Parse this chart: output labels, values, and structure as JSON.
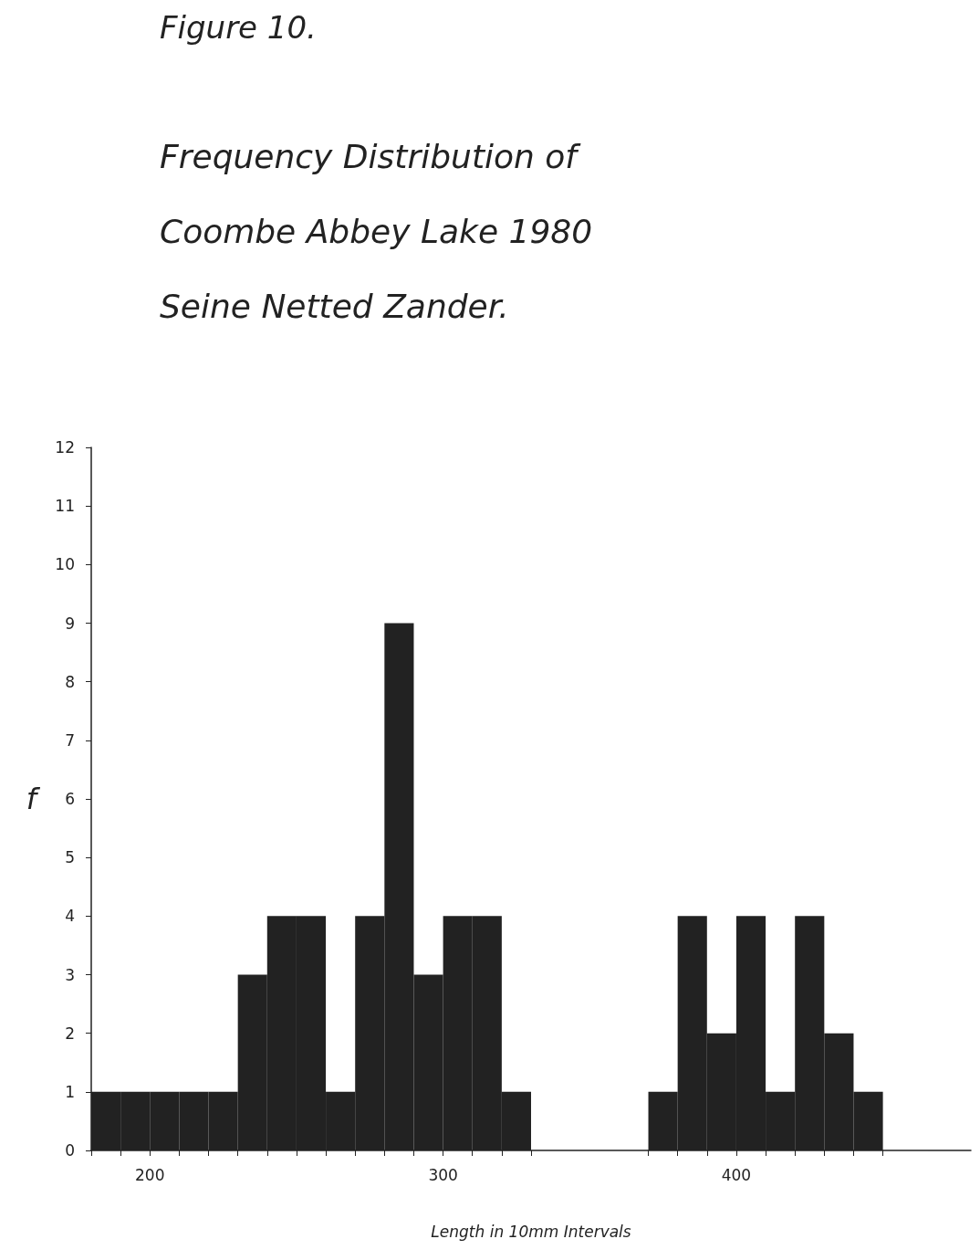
{
  "chart_data": {
    "type": "histogram",
    "title": "Figure 10.",
    "subtitle": "Frequency Distribution of\nCoombe Abbey Lake 1980\nSeine Netted Zander.",
    "xlabel": "Length in 10mm Intervals",
    "ylabel": "f",
    "bins": [
      180,
      190,
      200,
      210,
      220,
      230,
      240,
      250,
      260,
      270,
      280,
      290,
      300,
      310,
      320,
      330,
      340,
      350,
      360,
      370,
      380,
      390,
      400,
      410,
      420,
      430,
      440,
      450
    ],
    "values": [
      1,
      1,
      1,
      1,
      1,
      3,
      4,
      4,
      1,
      4,
      9,
      3,
      4,
      4,
      1,
      0,
      0,
      0,
      0,
      1,
      4,
      2,
      4,
      1,
      4,
      2,
      1
    ],
    "color": "#222222",
    "xlim": [
      180,
      480
    ],
    "xticks": [
      {
        "value": 180,
        "label": null
      },
      {
        "value": 190,
        "label": null
      },
      200,
      {
        "value": 210,
        "label": null
      },
      {
        "value": 220,
        "label": null
      },
      {
        "value": 230,
        "label": null
      },
      {
        "value": 240,
        "label": null
      },
      {
        "value": 250,
        "label": null
      },
      {
        "value": 260,
        "label": null
      },
      {
        "value": 270,
        "label": null
      },
      {
        "value": 280,
        "label": null
      },
      {
        "value": 290,
        "label": null
      },
      300,
      {
        "value": 310,
        "label": null
      },
      {
        "value": 320,
        "label": null
      },
      {
        "value": 330,
        "label": null
      },
      {
        "value": 370,
        "label": null
      },
      {
        "value": 380,
        "label": null
      },
      {
        "value": 390,
        "label": null
      },
      400,
      {
        "value": 410,
        "label": null
      },
      {
        "value": 420,
        "label": null
      },
      {
        "value": 430,
        "label": null
      },
      {
        "value": 440,
        "label": null
      },
      {
        "value": 450,
        "label": null
      }
    ],
    "ylim": [
      0,
      12
    ],
    "yticks": [
      0,
      1,
      2,
      3,
      4,
      5,
      6,
      7,
      8,
      9,
      10,
      11,
      12
    ],
    "grid": false
  }
}
